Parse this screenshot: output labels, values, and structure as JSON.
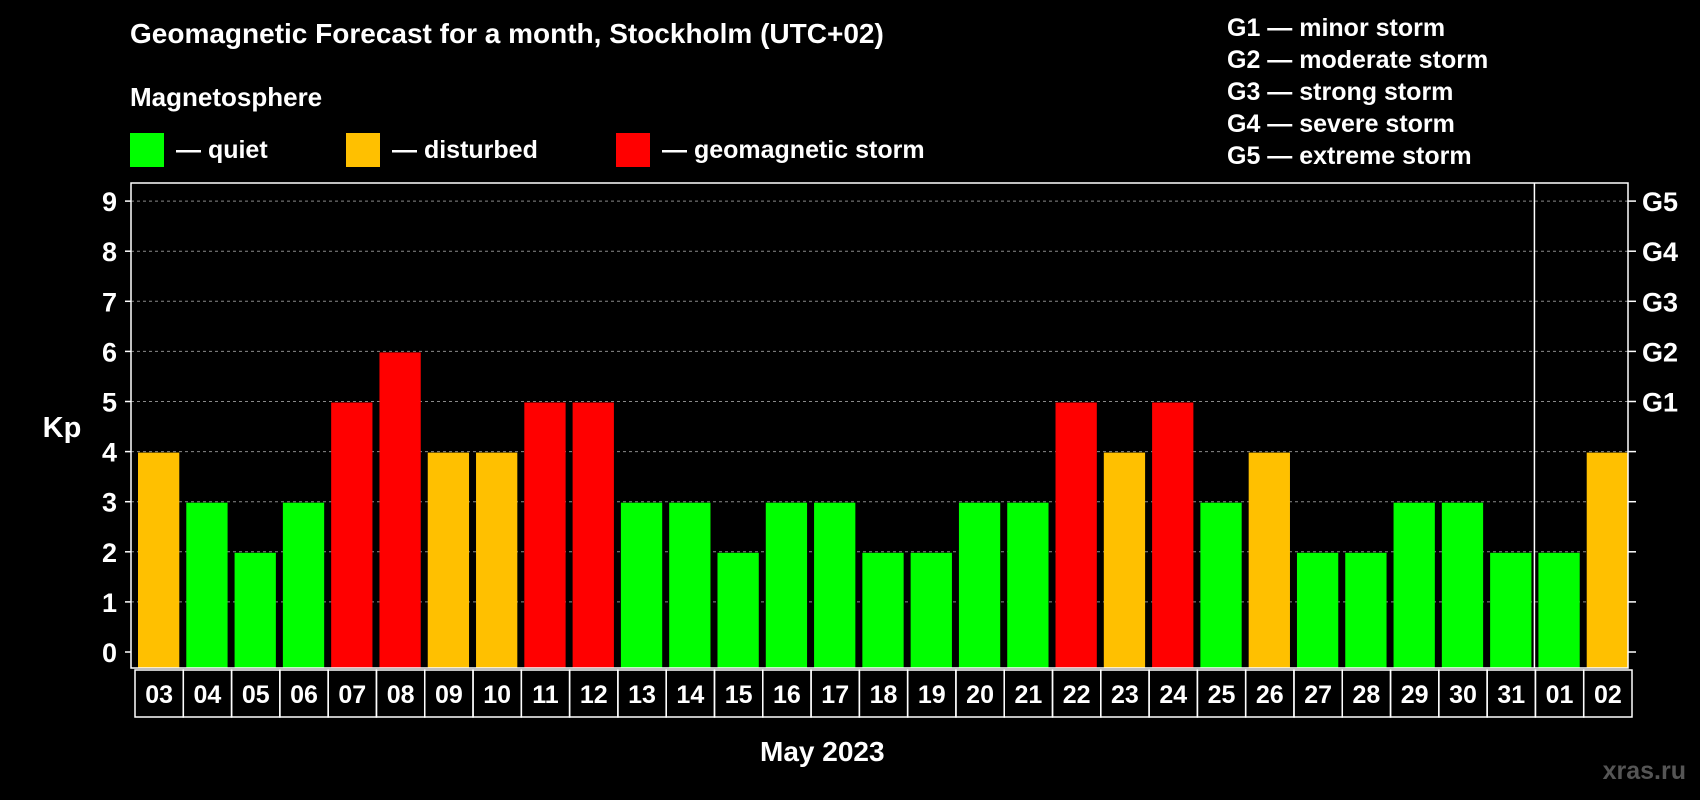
{
  "title": "Geomagnetic Forecast for a month, Stockholm (UTC+02)",
  "subtitle": "Magnetosphere",
  "legend": [
    {
      "label": "— quiet",
      "color": "#00ff00"
    },
    {
      "label": "— disturbed",
      "color": "#ffc000"
    },
    {
      "label": "— geomagnetic storm",
      "color": "#ff0000"
    }
  ],
  "storm_scale": [
    "G1 — minor storm",
    "G2 — moderate storm",
    "G3 — strong storm",
    "G4 — severe storm",
    "G5 — extreme storm"
  ],
  "footer": "May 2023",
  "watermark": "xras.ru",
  "chart_data": {
    "type": "bar",
    "title": "Geomagnetic Forecast for a month, Stockholm (UTC+02)",
    "xlabel": "May 2023",
    "ylabel": "Kp",
    "ylim": [
      0,
      9
    ],
    "yticks": [
      "0",
      "1",
      "2",
      "3",
      "4",
      "5",
      "6",
      "7",
      "8",
      "9"
    ],
    "right_ticks": [
      {
        "value": 5,
        "label": "G1"
      },
      {
        "value": 6,
        "label": "G2"
      },
      {
        "value": 7,
        "label": "G3"
      },
      {
        "value": 8,
        "label": "G4"
      },
      {
        "value": 9,
        "label": "G5"
      }
    ],
    "categories": [
      "03",
      "04",
      "05",
      "06",
      "07",
      "08",
      "09",
      "10",
      "11",
      "12",
      "13",
      "14",
      "15",
      "16",
      "17",
      "18",
      "19",
      "20",
      "21",
      "22",
      "23",
      "24",
      "25",
      "26",
      "27",
      "28",
      "29",
      "30",
      "31",
      "01",
      "02"
    ],
    "values": [
      4,
      3,
      2,
      3,
      5,
      6,
      4,
      4,
      5,
      5,
      3,
      3,
      2,
      3,
      3,
      2,
      2,
      3,
      3,
      5,
      4,
      5,
      3,
      4,
      2,
      2,
      3,
      3,
      2,
      2,
      4
    ],
    "colors": {
      "quiet": "#00ff00",
      "disturbed": "#ffc000",
      "storm": "#ff0000"
    },
    "month_separator_after": "31"
  }
}
